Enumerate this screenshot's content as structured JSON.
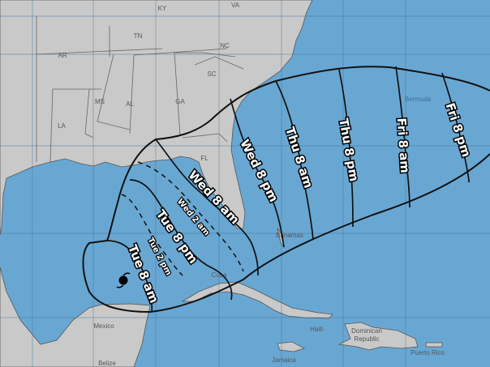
{
  "map": {
    "colors": {
      "water": "#69a7d3",
      "land": "#c9c9c9",
      "track_lines": "#111111",
      "label_text": "#ffffff"
    },
    "storm_icon": "hurricane-symbol-icon",
    "places": {
      "ky": "KY",
      "va": "VA",
      "tn": "TN",
      "nc": "NC",
      "ar": "AR",
      "sc": "SC",
      "ms": "MS",
      "al": "AL",
      "ga": "GA",
      "la": "LA",
      "fl": "FL",
      "bermuda": "Bermuda",
      "bahamas": "Bahamas",
      "cuba": "Cuba",
      "mexico": "Mexico",
      "haiti": "Haiti",
      "dominican1": "Dominican",
      "dominican2": "Republic",
      "puerto_rico": "Puerto Rico",
      "jamaica": "Jamaica",
      "belize": "Belize"
    },
    "forecast_times": {
      "tue_8am": "Tue 8 am",
      "tue_2pm": "Tue 2 pm",
      "tue_8pm": "Tue 8 pm",
      "wed_2am": "Wed 2 am",
      "wed_8am": "Wed 8 am",
      "wed_8pm": "Wed 8 pm",
      "thu_8am": "Thu 8 am",
      "thu_8pm": "Thu 8 pm",
      "fri_8am": "Fri 8 am",
      "fri_8pm": "Fri 8 pm"
    }
  }
}
